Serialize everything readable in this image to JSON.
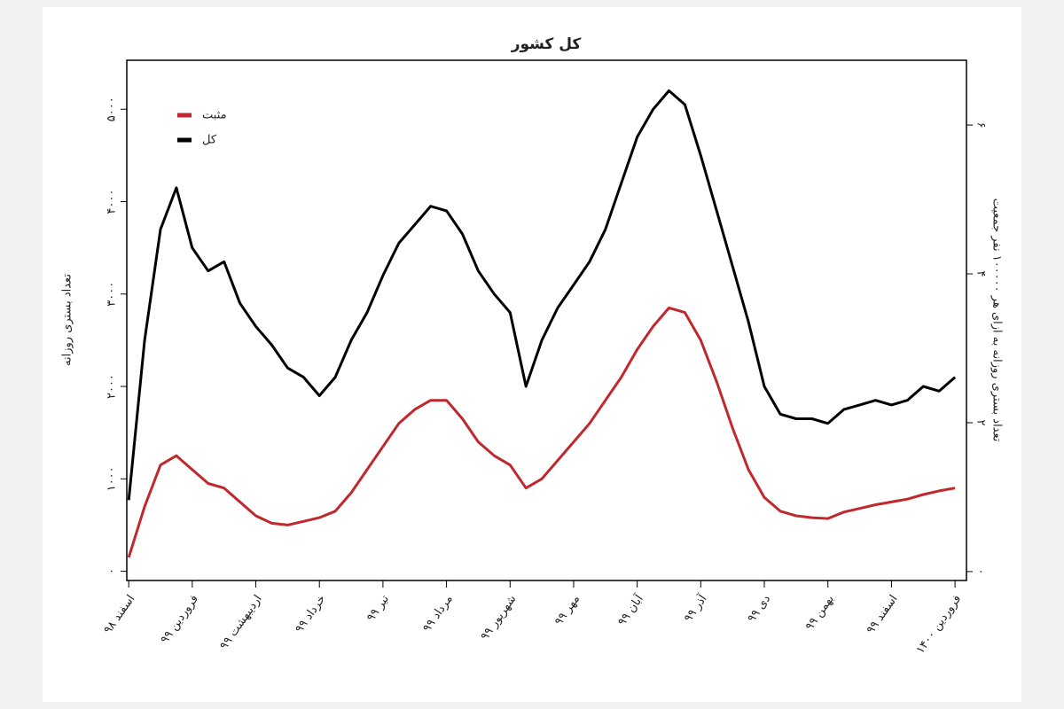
{
  "chart_data": {
    "type": "line",
    "title": "کل کشور",
    "y_label": "تعداد بستری روزانه",
    "y2_label": "تعداد بستری روزانه به ازای هر ۱۰۰۰۰۰ نفر جمعیت",
    "x": [
      0,
      0.25,
      0.5,
      0.75,
      1,
      1.25,
      1.5,
      1.75,
      2,
      2.25,
      2.5,
      2.75,
      3,
      3.25,
      3.5,
      3.75,
      4,
      4.25,
      4.5,
      4.75,
      5,
      5.25,
      5.5,
      5.75,
      6,
      6.25,
      6.5,
      6.75,
      7,
      7.25,
      7.5,
      7.75,
      8,
      8.25,
      8.5,
      8.75,
      9,
      9.25,
      9.5,
      9.75,
      10,
      10.25,
      10.5,
      10.75,
      11,
      11.25,
      11.5,
      11.75,
      12,
      12.25,
      12.5,
      12.75,
      13
    ],
    "xlim": [
      -0.03,
      13.18
    ],
    "xticks": [
      {
        "value": 0,
        "label": "اسفند ۹۸"
      },
      {
        "value": 1,
        "label": "فروردین ۹۹"
      },
      {
        "value": 2,
        "label": "اردیبهشت ۹۹"
      },
      {
        "value": 3,
        "label": "خرداد ۹۹"
      },
      {
        "value": 4,
        "label": "تیر ۹۹"
      },
      {
        "value": 5,
        "label": "مرداد ۹۹"
      },
      {
        "value": 6,
        "label": "شهریور ۹۹"
      },
      {
        "value": 7,
        "label": "مهر ۹۹"
      },
      {
        "value": 8,
        "label": "آبان ۹۹"
      },
      {
        "value": 9,
        "label": "آذر ۹۹"
      },
      {
        "value": 10,
        "label": "دی ۹۹"
      },
      {
        "value": 11,
        "label": "بهمن ۹۹"
      },
      {
        "value": 12,
        "label": "اسفند ۹۹"
      },
      {
        "value": 13,
        "label": "فروردین ۱۴۰۰"
      }
    ],
    "ylim": [
      -100,
      5530
    ],
    "yticks": [
      {
        "value": 0,
        "label": "۰"
      },
      {
        "value": 1000,
        "label": "۱۰۰۰"
      },
      {
        "value": 2000,
        "label": "۲۰۰۰"
      },
      {
        "value": 3000,
        "label": "۳۰۰۰"
      },
      {
        "value": 4000,
        "label": "۴۰۰۰"
      },
      {
        "value": 5000,
        "label": "۵۰۰۰"
      }
    ],
    "y2lim": [
      -0.12,
      6.87
    ],
    "y2ticks": [
      {
        "value": 0,
        "label": "۰"
      },
      {
        "value": 2,
        "label": "۲"
      },
      {
        "value": 4,
        "label": "۴"
      },
      {
        "value": 6,
        "label": "۶"
      }
    ],
    "legend": "upper left",
    "series": [
      {
        "name": "مثبت",
        "color": "#c0282d",
        "values": [
          150,
          700,
          1150,
          1250,
          1100,
          950,
          900,
          750,
          600,
          520,
          500,
          540,
          580,
          650,
          850,
          1100,
          1350,
          1600,
          1750,
          1850,
          1850,
          1650,
          1400,
          1250,
          1150,
          900,
          1000,
          1200,
          1400,
          1600,
          1850,
          2100,
          2400,
          2650,
          2850,
          2800,
          2500,
          2050,
          1550,
          1100,
          800,
          650,
          600,
          580,
          570,
          640,
          680,
          720,
          750,
          780,
          830,
          870,
          900
        ]
      },
      {
        "name": "کل",
        "color": "#000000",
        "values": [
          770,
          2500,
          3700,
          4150,
          3500,
          3250,
          3350,
          2900,
          2650,
          2450,
          2200,
          2100,
          1900,
          2100,
          2500,
          2800,
          3200,
          3550,
          3750,
          3950,
          3900,
          3650,
          3250,
          3000,
          2800,
          2000,
          2500,
          2850,
          3100,
          3350,
          3700,
          4200,
          4700,
          5000,
          5200,
          5050,
          4500,
          3900,
          3300,
          2700,
          2000,
          1700,
          1650,
          1650,
          1600,
          1750,
          1800,
          1850,
          1800,
          1850,
          2000,
          1950,
          2100
        ]
      }
    ]
  }
}
